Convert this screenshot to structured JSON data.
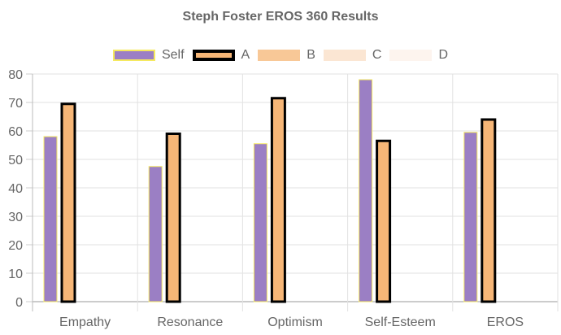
{
  "chart_data": {
    "type": "bar",
    "title": "Steph Foster EROS 360 Results",
    "categories": [
      "Empathy",
      "Resonance",
      "Optimism",
      "Self-Esteem",
      "EROS"
    ],
    "series": [
      {
        "name": "Self",
        "values": [
          58,
          47.5,
          55.5,
          78,
          59.5
        ],
        "color": "#9b7fc4",
        "border": "#f5e960",
        "border_width": 1
      },
      {
        "name": "A",
        "values": [
          69.5,
          59,
          71.5,
          56.5,
          64
        ],
        "color": "#f6b677",
        "border": "#000000",
        "border_width": 3
      },
      {
        "name": "B",
        "values": [],
        "color": "#f8c897",
        "border": "none",
        "border_width": 0
      },
      {
        "name": "C",
        "values": [],
        "color": "#fbe6d3",
        "border": "none",
        "border_width": 0
      },
      {
        "name": "D",
        "values": [],
        "color": "#fdf4ee",
        "border": "none",
        "border_width": 0
      }
    ],
    "xlabel": "",
    "ylabel": "",
    "ylim": [
      0,
      80
    ],
    "yticks": [
      0,
      10,
      20,
      30,
      40,
      50,
      60,
      70,
      80
    ],
    "grid": true,
    "legend_position": "top"
  }
}
